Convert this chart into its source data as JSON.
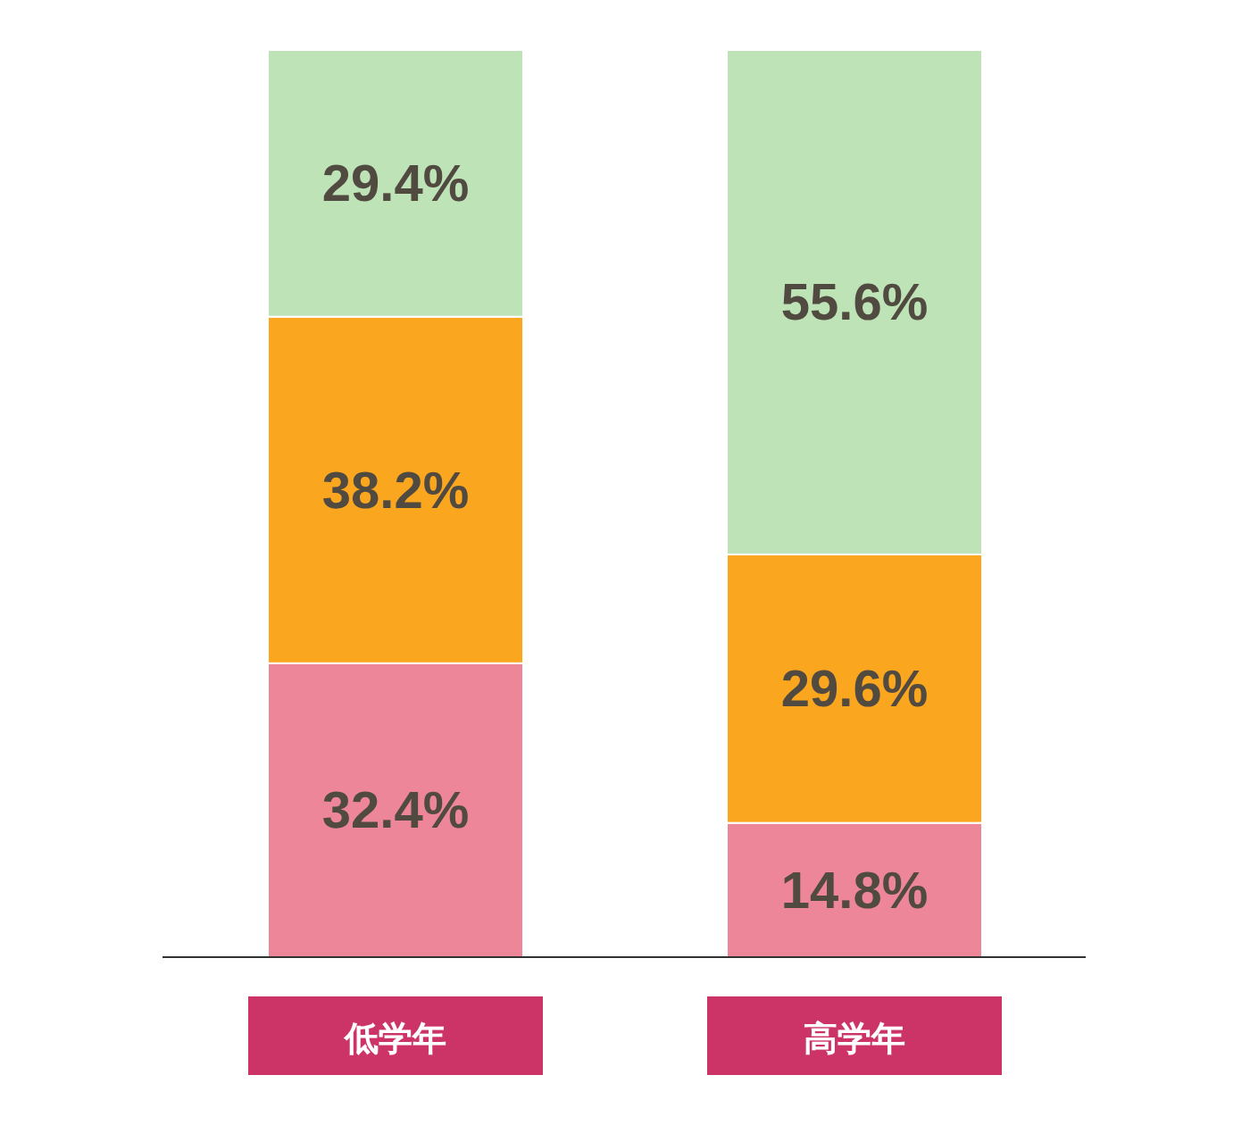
{
  "chart_data": {
    "type": "bar",
    "stacked": true,
    "categories": [
      "低学年",
      "高学年"
    ],
    "series": [
      {
        "color": "#ec8698",
        "values": [
          32.4,
          14.8
        ],
        "value_labels": [
          "32.4%",
          "14.8%"
        ]
      },
      {
        "color": "#fba61f",
        "values": [
          38.2,
          29.6
        ],
        "value_labels": [
          "38.2%",
          "29.6%"
        ]
      },
      {
        "color": "#bde3b6",
        "values": [
          29.4,
          55.6
        ],
        "value_labels": [
          "29.4%",
          "55.6%"
        ]
      }
    ]
  }
}
